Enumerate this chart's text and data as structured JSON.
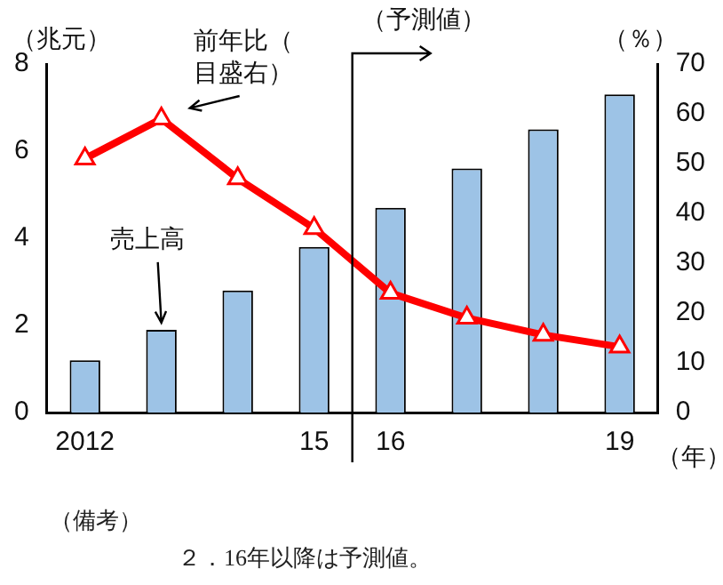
{
  "chart_data": {
    "type": "bar",
    "categories": [
      "2012",
      null,
      null,
      "15",
      "16",
      null,
      null,
      "19"
    ],
    "xlabel": "（年）",
    "ylabel": "（兆元）",
    "y2label": "（％）",
    "series": [
      {
        "name": "売上高",
        "color": "#9dc3e6",
        "values": [
          1.2,
          1.9,
          2.8,
          3.8,
          4.7,
          5.6,
          6.5,
          7.3
        ]
      },
      {
        "name": "前年比（目盛右）",
        "type": "line",
        "axis": "y2",
        "color": "#ff0000",
        "values": [
          51,
          59,
          47,
          37,
          24,
          19,
          15.6,
          13.2
        ]
      }
    ],
    "ylim": [
      0,
      8
    ],
    "yticks": [
      0,
      2,
      4,
      6,
      8
    ],
    "y2lim": [
      0,
      70
    ],
    "y2ticks": [
      0,
      10,
      20,
      30,
      40,
      50,
      60,
      70
    ],
    "marker": "triangle",
    "grid": false,
    "legend": false,
    "annotations": [
      "（予測値）",
      "（備考）",
      "２．16年以降は予測値。"
    ]
  }
}
